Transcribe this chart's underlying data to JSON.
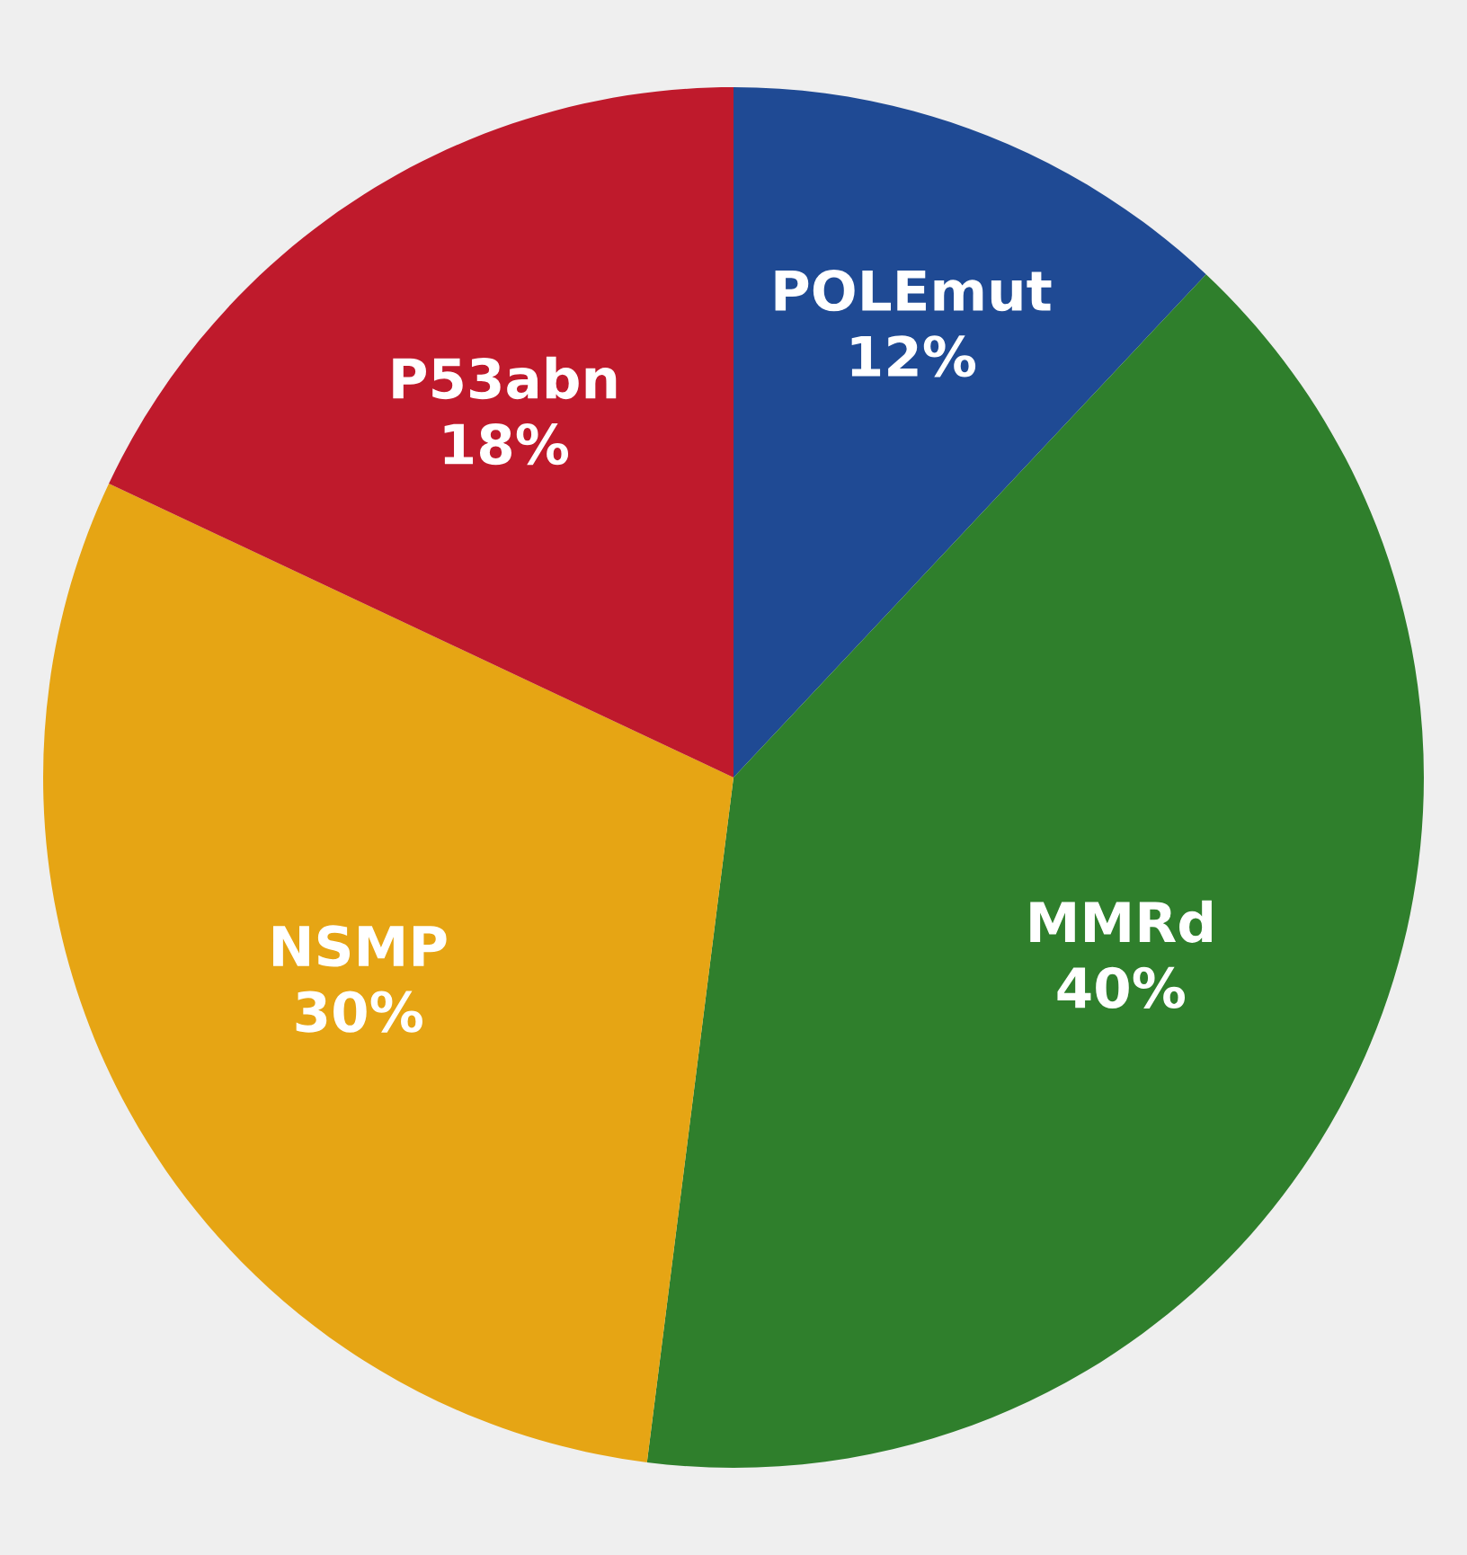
{
  "chart_data": {
    "type": "pie",
    "categories": [
      "POLEmut",
      "MMRd",
      "NSMP",
      "P53abn"
    ],
    "values": [
      12,
      40,
      30,
      18
    ],
    "value_labels": [
      "12%",
      "40%",
      "30%",
      "18%"
    ],
    "colors": [
      "#1f4a94",
      "#2f7f2c",
      "#e6a514",
      "#bf1a2c"
    ],
    "legend": false
  }
}
